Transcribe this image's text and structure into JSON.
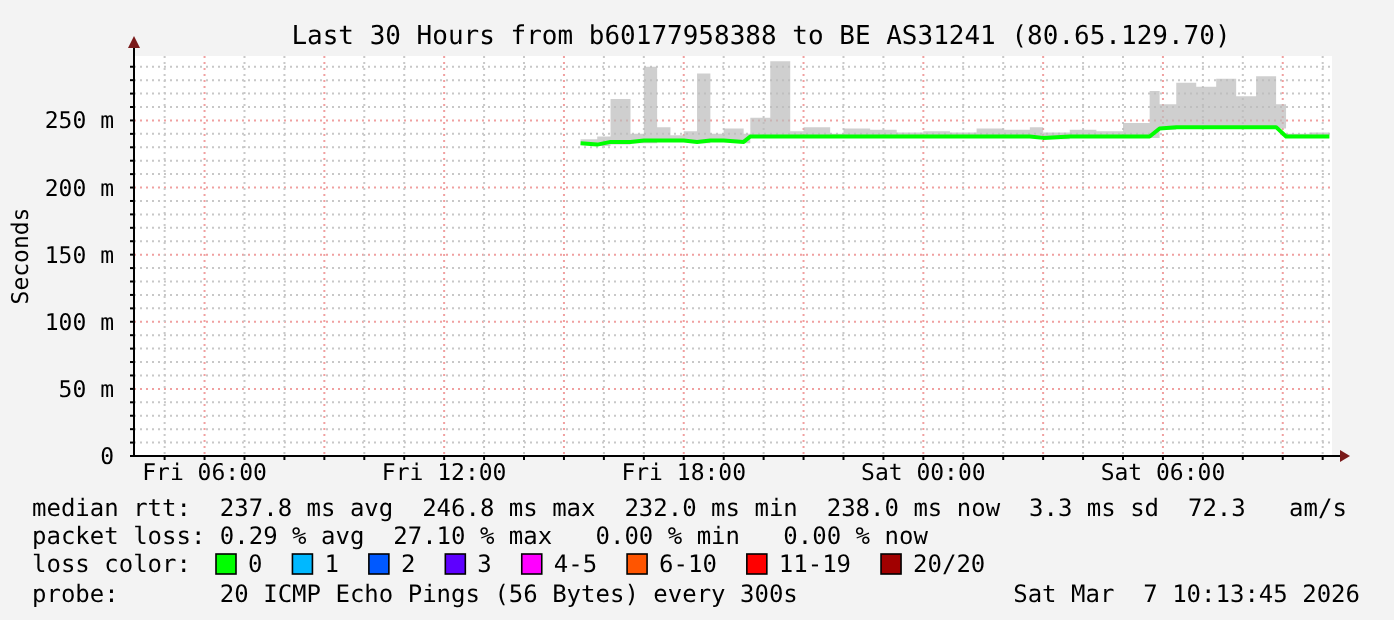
{
  "chart_data": {
    "type": "line",
    "title": "Last 30 Hours from b60177958388 to BE AS31241 (80.65.129.70)",
    "ylabel": "Seconds",
    "legend_title": "loss color:",
    "legend": "bottom",
    "grid": true,
    "marker": "none",
    "line_style": "solid",
    "xlim": [
      "2026-03-06T04:14",
      "2026-03-07T10:14"
    ],
    "xticks": [
      {
        "value": "2026-03-06T05:00",
        "label": null
      },
      {
        "value": "2026-03-06T06:00",
        "label": "Fri 06:00"
      },
      {
        "value": "2026-03-06T07:00",
        "label": null
      },
      {
        "value": "2026-03-06T08:00",
        "label": null
      },
      {
        "value": "2026-03-06T09:00",
        "label": null
      },
      {
        "value": "2026-03-06T10:00",
        "label": null
      },
      {
        "value": "2026-03-06T11:00",
        "label": null
      },
      {
        "value": "2026-03-06T12:00",
        "label": "Fri 12:00"
      },
      {
        "value": "2026-03-06T13:00",
        "label": null
      },
      {
        "value": "2026-03-06T14:00",
        "label": null
      },
      {
        "value": "2026-03-06T15:00",
        "label": null
      },
      {
        "value": "2026-03-06T16:00",
        "label": null
      },
      {
        "value": "2026-03-06T17:00",
        "label": null
      },
      {
        "value": "2026-03-06T18:00",
        "label": "Fri 18:00"
      },
      {
        "value": "2026-03-06T19:00",
        "label": null
      },
      {
        "value": "2026-03-06T20:00",
        "label": null
      },
      {
        "value": "2026-03-06T21:00",
        "label": null
      },
      {
        "value": "2026-03-06T22:00",
        "label": null
      },
      {
        "value": "2026-03-06T23:00",
        "label": null
      },
      {
        "value": "2026-03-07T00:00",
        "label": "Sat 00:00"
      },
      {
        "value": "2026-03-07T01:00",
        "label": null
      },
      {
        "value": "2026-03-07T02:00",
        "label": null
      },
      {
        "value": "2026-03-07T03:00",
        "label": null
      },
      {
        "value": "2026-03-07T04:00",
        "label": null
      },
      {
        "value": "2026-03-07T05:00",
        "label": null
      },
      {
        "value": "2026-03-07T06:00",
        "label": "Sat 06:00"
      },
      {
        "value": "2026-03-07T07:00",
        "label": null
      },
      {
        "value": "2026-03-07T08:00",
        "label": null
      },
      {
        "value": "2026-03-07T09:00",
        "label": null
      },
      {
        "value": "2026-03-07T10:00",
        "label": null
      }
    ],
    "ylim": [
      0,
      298
    ],
    "yticks": [
      {
        "value": 0,
        "label": "0"
      },
      {
        "value": 10,
        "label": null
      },
      {
        "value": 20,
        "label": null
      },
      {
        "value": 30,
        "label": null
      },
      {
        "value": 40,
        "label": null
      },
      {
        "value": 50,
        "label": "50 m"
      },
      {
        "value": 60,
        "label": null
      },
      {
        "value": 70,
        "label": null
      },
      {
        "value": 80,
        "label": null
      },
      {
        "value": 90,
        "label": null
      },
      {
        "value": 100,
        "label": "100 m"
      },
      {
        "value": 110,
        "label": null
      },
      {
        "value": 120,
        "label": null
      },
      {
        "value": 130,
        "label": null
      },
      {
        "value": 140,
        "label": null
      },
      {
        "value": 150,
        "label": "150 m"
      },
      {
        "value": 160,
        "label": null
      },
      {
        "value": 170,
        "label": null
      },
      {
        "value": 180,
        "label": null
      },
      {
        "value": 190,
        "label": null
      },
      {
        "value": 200,
        "label": "200 m"
      },
      {
        "value": 210,
        "label": null
      },
      {
        "value": 220,
        "label": null
      },
      {
        "value": 230,
        "label": null
      },
      {
        "value": 240,
        "label": null
      },
      {
        "value": 250,
        "label": "250 m"
      },
      {
        "value": 260,
        "label": null
      },
      {
        "value": 270,
        "label": null
      },
      {
        "value": 280,
        "label": null
      },
      {
        "value": 290,
        "label": null
      }
    ],
    "series": [
      {
        "name": "0",
        "color": "#00ff00",
        "x": [
          "2026-03-06T15:25",
          "2026-03-06T15:50",
          "2026-03-06T16:10",
          "2026-03-06T16:40",
          "2026-03-06T17:00",
          "2026-03-06T17:20",
          "2026-03-06T17:40",
          "2026-03-06T18:00",
          "2026-03-06T18:20",
          "2026-03-06T18:40",
          "2026-03-06T19:00",
          "2026-03-06T19:30",
          "2026-03-06T19:40",
          "2026-03-06T20:10",
          "2026-03-06T20:40",
          "2026-03-06T21:00",
          "2026-03-06T21:40",
          "2026-03-06T22:00",
          "2026-03-06T22:40",
          "2026-03-06T23:20",
          "2026-03-07T00:00",
          "2026-03-07T00:40",
          "2026-03-07T01:20",
          "2026-03-07T02:00",
          "2026-03-07T02:40",
          "2026-03-07T03:00",
          "2026-03-07T03:40",
          "2026-03-07T04:20",
          "2026-03-07T05:00",
          "2026-03-07T05:40",
          "2026-03-07T05:55",
          "2026-03-07T06:20",
          "2026-03-07T06:50",
          "2026-03-07T07:20",
          "2026-03-07T07:50",
          "2026-03-07T08:20",
          "2026-03-07T08:50",
          "2026-03-07T09:05",
          "2026-03-07T09:40",
          "2026-03-07T10:10"
        ],
        "values": [
          233,
          232,
          234,
          234,
          235,
          235,
          235,
          235,
          234,
          235,
          235,
          234,
          238,
          238,
          238,
          238,
          238,
          238,
          238,
          238,
          238,
          238,
          238,
          238,
          238,
          237,
          238,
          238,
          238,
          238,
          244,
          245,
          245,
          245,
          245,
          245,
          245,
          238,
          238,
          238
        ],
        "lower": [
          232,
          231,
          232,
          233,
          233,
          234,
          234,
          234,
          233,
          234,
          234,
          233,
          237,
          237,
          237,
          237,
          237,
          237,
          237,
          237,
          237,
          237,
          237,
          237,
          237,
          236,
          237,
          237,
          237,
          237,
          243,
          244,
          244,
          244,
          244,
          244,
          244,
          237,
          237,
          237
        ],
        "upper": [
          236,
          238,
          266,
          240,
          290,
          245,
          239,
          242,
          285,
          240,
          244,
          240,
          252,
          294,
          242,
          245,
          240,
          244,
          243,
          241,
          242,
          241,
          244,
          243,
          245,
          241,
          243,
          242,
          248,
          272,
          262,
          278,
          275,
          281,
          268,
          283,
          262,
          240,
          241,
          276
        ]
      },
      {
        "name": "1",
        "color": "#00b8ff",
        "values": [
          null
        ]
      },
      {
        "name": "2",
        "color": "#0059ff",
        "values": [
          null
        ]
      },
      {
        "name": "3",
        "color": "#5e00ff",
        "values": [
          null
        ]
      },
      {
        "name": "4-5",
        "color": "#ff00ff",
        "values": [
          null
        ]
      },
      {
        "name": "6-10",
        "color": "#ff5500",
        "values": [
          null
        ]
      },
      {
        "name": "11-19",
        "color": "#ff0000",
        "values": [
          null
        ]
      },
      {
        "name": "20/20",
        "color": "#a10000",
        "values": [
          null
        ]
      }
    ],
    "annotations": [
      "median rtt:  237.8 ms avg  246.8 ms max  232.0 ms min  238.0 ms now  3.3 ms sd  72.3   am/s",
      "packet loss: 0.29 % avg  27.10 % max   0.00 % min   0.00 % now",
      "probe:       20 ICMP Echo Pings (56 Bytes) every 300s",
      "Sat Mar  7 10:13:45 2026"
    ]
  }
}
